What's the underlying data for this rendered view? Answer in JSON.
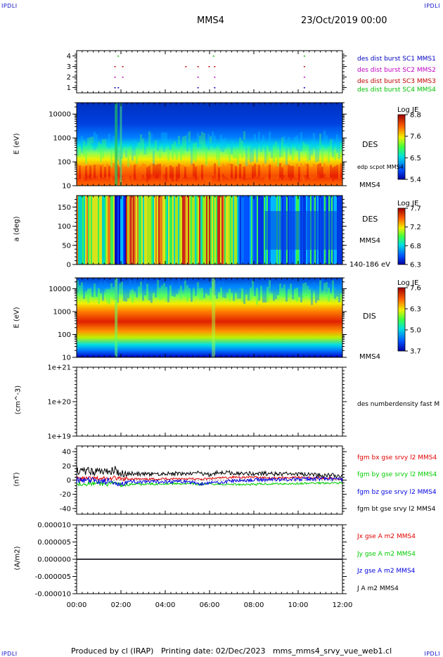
{
  "corner_tag": "IPDLI",
  "header": {
    "spacecraft": "MMS4",
    "date": "23/Oct/2019 00:00"
  },
  "footer": "Produced by cl (IRAP)   Printing date: 02/Dec/2023   mms_mms4_srvy_vue_web1.cl",
  "colors": {
    "jx": "#e00000",
    "jy": "#00cc00",
    "jz": "#0000e0",
    "j": "#000000",
    "spectro_low": "#0000a0",
    "spectro_high": "#b00000"
  },
  "chart_data": [
    {
      "type": "scatter",
      "panel": "burst",
      "y_ticks": [
        "1",
        "2",
        "3",
        "4"
      ],
      "ylim": [
        0.5,
        4.5
      ],
      "legend": [
        {
          "name": "des dist burst SC1 MMS1",
          "color": "#0000c0"
        },
        {
          "name": "des dist burst SC2 MMS2",
          "color": "#c000c0"
        },
        {
          "name": "des dist burst SC3 MMS3",
          "color": "#c00000"
        },
        {
          "name": "des dist burst SC4 MMS4",
          "color": "#00c000"
        }
      ],
      "points": [
        {
          "sc": 4,
          "x": [
            1.85,
            6.15,
            10.25
          ]
        },
        {
          "sc": 3,
          "x": [
            1.7,
            2.05,
            4.9,
            5.45,
            5.95,
            6.2,
            10.25
          ]
        },
        {
          "sc": 2,
          "x": [
            1.7,
            2.05,
            5.45,
            6.2,
            10.25
          ]
        },
        {
          "sc": 1,
          "x": [
            1.7,
            1.85,
            5.45,
            6.2,
            10.25
          ]
        }
      ]
    },
    {
      "type": "heatmap",
      "panel": "des_energy",
      "ylabel": "E (eV)",
      "y_ticks": [
        "10",
        "100",
        "1000",
        "10000"
      ],
      "ylim": [
        10,
        30000
      ],
      "log_y": true,
      "label": "DES",
      "overlay": "edp scpot MMS4",
      "spacecraft": "MMS4",
      "colorbar": {
        "title": "Log JE",
        "ticks": [
          "8.8",
          "7.6",
          "6.5",
          "5.4"
        ]
      }
    },
    {
      "type": "heatmap",
      "panel": "des_pitch",
      "ylabel": "a (deg)",
      "y_ticks": [
        "0",
        "50",
        "100",
        "150"
      ],
      "ylim": [
        0,
        180
      ],
      "label": "DES",
      "spacecraft": "MMS4",
      "energy_range": "140-186 eV",
      "colorbar": {
        "title": "Log JE",
        "ticks": [
          "7.7",
          "7.2",
          "6.8",
          "6.3"
        ]
      }
    },
    {
      "type": "heatmap",
      "panel": "dis_energy",
      "ylabel": "E (eV)",
      "y_ticks": [
        "10",
        "100",
        "1000",
        "10000"
      ],
      "ylim": [
        10,
        30000
      ],
      "log_y": true,
      "label": "DIS",
      "spacecraft": "MMS4",
      "colorbar": {
        "title": "Log JE",
        "ticks": [
          "7.6",
          "6.3",
          "5.0",
          "3.7"
        ]
      }
    },
    {
      "type": "line",
      "panel": "density",
      "ylabel": "(cm^-3)",
      "y_ticks": [
        "1e+19",
        "1e+20",
        "1e+21"
      ],
      "ylim": [
        1e+19,
        1e+21
      ],
      "log_y": true,
      "series": [
        {
          "name": "des numberdensity fast M",
          "values": []
        }
      ]
    },
    {
      "type": "line",
      "panel": "bfield",
      "ylabel": "(nT)",
      "y_ticks": [
        "-40",
        "-20",
        "0",
        "20",
        "40"
      ],
      "ylim": [
        -48,
        48
      ],
      "x": [
        0,
        1,
        1.5,
        1.75,
        2,
        2.5,
        3,
        4,
        5,
        5.5,
        6,
        6.5,
        7,
        8,
        9,
        10,
        11,
        12
      ],
      "series": [
        {
          "name": "fgm bx gse srvy l2 MMS4",
          "color": "#e00000",
          "values": [
            2,
            2,
            2,
            3,
            1,
            2,
            1,
            2,
            2,
            1,
            2,
            3,
            4,
            4,
            3,
            4,
            3,
            2
          ]
        },
        {
          "name": "fgm by gse srvy l2 MMS4",
          "color": "#00cc00",
          "values": [
            -5,
            -5,
            -6,
            -4,
            -7,
            -6,
            -6,
            -5,
            -5,
            -6,
            -5,
            -6,
            -6,
            -6,
            -5,
            -5,
            -4,
            -4
          ]
        },
        {
          "name": "fgm bz gse srvy l2 MMS4",
          "color": "#0000e0",
          "values": [
            -1,
            -1,
            -2,
            -8,
            -3,
            -2,
            -3,
            -2,
            -2,
            -5,
            -4,
            -3,
            -1,
            0,
            1,
            1,
            2,
            1
          ]
        },
        {
          "name": "fgm bt gse srvy l2 MMS4",
          "color": "#000000",
          "values": [
            13,
            12,
            12,
            14,
            10,
            9,
            8,
            9,
            9,
            10,
            8,
            11,
            10,
            9,
            9,
            8,
            7,
            6
          ]
        }
      ]
    },
    {
      "type": "line",
      "panel": "current",
      "ylabel": "(A/m2)",
      "y_ticks": [
        "-0.000010",
        "-0.000005",
        "0.000000",
        "0.000005",
        "0.000010"
      ],
      "ylim": [
        -1e-05,
        1e-05
      ],
      "x": [
        0,
        3,
        6,
        9,
        12
      ],
      "series": [
        {
          "name": "Jx gse A m2 MMS4",
          "color": "#e00000",
          "values": [
            0,
            0,
            0,
            0,
            0
          ]
        },
        {
          "name": "Jy gse A m2 MMS4",
          "color": "#00cc00",
          "values": [
            0,
            0,
            0,
            0,
            0
          ]
        },
        {
          "name": "Jz gse A m2 MMS4",
          "color": "#0000e0",
          "values": [
            0,
            0,
            0,
            0,
            0
          ]
        },
        {
          "name": "J A m2 MMS4",
          "color": "#000000",
          "values": [
            0,
            0,
            0,
            0,
            0
          ]
        }
      ]
    }
  ],
  "x_axis": {
    "ticks": [
      "00:00",
      "02:00",
      "04:00",
      "06:00",
      "08:00",
      "10:00",
      "12:00"
    ],
    "range_hours": [
      0,
      12
    ]
  }
}
